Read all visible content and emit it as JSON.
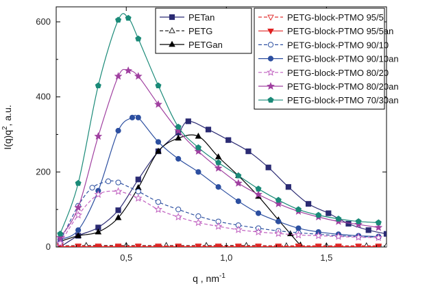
{
  "chart_data": {
    "type": "line",
    "xlabel": "q , nm",
    "xlabel_sup": "-1",
    "ylabel_pre": "I(q)q",
    "ylabel_sup": "2",
    "ylabel_post": ", a.u.",
    "xlim": [
      0.15,
      1.8
    ],
    "ylim": [
      0,
      640
    ],
    "xticks": [
      0.5,
      1.0,
      1.5
    ],
    "xtick_labels": [
      "0,5",
      "1,0",
      "1,5"
    ],
    "yticks": [
      0,
      200,
      400,
      600
    ],
    "ytick_labels": [
      "0",
      "200",
      "400",
      "600"
    ],
    "grid": false,
    "legend_placement": [
      "top-center",
      "top-right"
    ],
    "series": [
      {
        "name": "PETan",
        "color": "#2b2b73",
        "marker": "square",
        "filled": true,
        "dash": false,
        "legend": 0,
        "x": [
          0.17,
          0.26,
          0.36,
          0.46,
          0.56,
          0.66,
          0.76,
          0.81,
          0.91,
          1.01,
          1.11,
          1.21,
          1.31,
          1.41,
          1.51,
          1.61,
          1.71,
          1.8
        ],
        "y": [
          0,
          30,
          52,
          98,
          180,
          255,
          305,
          335,
          313,
          285,
          255,
          212,
          160,
          115,
          90,
          62,
          45,
          35
        ]
      },
      {
        "name": "PETG",
        "color": "#222222",
        "marker": "triangle-up",
        "filled": false,
        "dash": true,
        "legend": 0,
        "x": [
          0.17,
          0.3,
          0.5,
          0.7,
          0.9,
          1.1,
          1.3,
          1.5,
          1.7,
          1.8
        ],
        "y": [
          3,
          4,
          4,
          4,
          4,
          4,
          3,
          3,
          3,
          3
        ]
      },
      {
        "name": "PETGan",
        "color": "#000000",
        "marker": "triangle-up",
        "filled": true,
        "dash": false,
        "legend": 0,
        "x": [
          0.17,
          0.26,
          0.36,
          0.46,
          0.56,
          0.66,
          0.76,
          0.86,
          0.96,
          1.06,
          1.16,
          1.26,
          1.32,
          1.37,
          1.42
        ],
        "y": [
          15,
          30,
          40,
          78,
          158,
          255,
          290,
          295,
          240,
          190,
          135,
          72,
          35,
          5,
          -15
        ]
      },
      {
        "name": "PETG-block-PTMO 95/5",
        "color": "#e03030",
        "marker": "triangle-down",
        "filled": false,
        "dash": true,
        "legend": 1,
        "x": [
          0.17,
          0.26,
          0.36,
          0.46,
          0.56,
          0.66,
          0.76,
          0.86,
          0.96,
          1.06,
          1.16,
          1.26,
          1.36,
          1.46,
          1.56,
          1.66,
          1.76
        ],
        "y": [
          2,
          3,
          3,
          3,
          3,
          3,
          3,
          3,
          3,
          3,
          3,
          3,
          3,
          3,
          3,
          3,
          3
        ]
      },
      {
        "name": "PETG-block-PTMO 95/5an",
        "color": "#e02020",
        "marker": "triangle-down",
        "filled": true,
        "dash": false,
        "legend": 1,
        "x": [
          0.17,
          0.26,
          0.36,
          0.46,
          0.56,
          0.66,
          0.76,
          0.86,
          0.96,
          1.06,
          1.16,
          1.26,
          1.36,
          1.46,
          1.56,
          1.66,
          1.76
        ],
        "y": [
          1,
          1,
          1,
          1,
          1,
          1,
          1,
          1,
          1,
          1,
          1,
          1,
          1,
          1,
          1,
          1,
          1
        ]
      },
      {
        "name": "PETG-block-PTMO 90/10",
        "color": "#2c4fa0",
        "marker": "circle",
        "filled": false,
        "dash": true,
        "legend": 1,
        "x": [
          0.17,
          0.26,
          0.33,
          0.41,
          0.46,
          0.56,
          0.66,
          0.76,
          0.86,
          0.96,
          1.06,
          1.16,
          1.26,
          1.36,
          1.46,
          1.56,
          1.66,
          1.76
        ],
        "y": [
          15,
          110,
          158,
          175,
          172,
          148,
          120,
          100,
          82,
          68,
          58,
          50,
          43,
          38,
          34,
          30,
          28,
          26
        ]
      },
      {
        "name": "PETG-block-PTMO 90/10an",
        "color": "#2c4fa0",
        "marker": "circle",
        "filled": true,
        "dash": false,
        "legend": 1,
        "x": [
          0.17,
          0.26,
          0.36,
          0.46,
          0.53,
          0.56,
          0.66,
          0.76,
          0.86,
          0.96,
          1.06,
          1.16,
          1.26,
          1.36,
          1.46,
          1.56,
          1.66,
          1.76
        ],
        "y": [
          20,
          45,
          150,
          310,
          345,
          345,
          280,
          235,
          200,
          160,
          122,
          90,
          68,
          50,
          40,
          34,
          30,
          28
        ]
      },
      {
        "name": "PETG-block-PTMO 80/20",
        "color": "#c060c0",
        "marker": "star",
        "filled": false,
        "dash": true,
        "legend": 1,
        "x": [
          0.17,
          0.26,
          0.36,
          0.46,
          0.56,
          0.66,
          0.76,
          0.86,
          0.96,
          1.06,
          1.16,
          1.26,
          1.36,
          1.46,
          1.56,
          1.66,
          1.76
        ],
        "y": [
          10,
          85,
          140,
          148,
          130,
          100,
          80,
          65,
          55,
          46,
          40,
          36,
          32,
          30,
          28,
          26,
          25
        ]
      },
      {
        "name": "PETG-block-PTMO 80/20an",
        "color": "#a040a0",
        "marker": "star",
        "filled": true,
        "dash": false,
        "legend": 1,
        "x": [
          0.17,
          0.26,
          0.36,
          0.46,
          0.51,
          0.56,
          0.66,
          0.76,
          0.86,
          0.96,
          1.06,
          1.16,
          1.26,
          1.36,
          1.46,
          1.56,
          1.66,
          1.76
        ],
        "y": [
          25,
          105,
          295,
          455,
          470,
          455,
          380,
          310,
          255,
          210,
          170,
          140,
          115,
          95,
          80,
          68,
          60,
          52
        ]
      },
      {
        "name": "PETG-block-PTMO 70/30an",
        "color": "#1a8a78",
        "marker": "pentagon",
        "filled": true,
        "dash": false,
        "legend": 1,
        "x": [
          0.17,
          0.26,
          0.36,
          0.46,
          0.51,
          0.56,
          0.66,
          0.76,
          0.86,
          0.96,
          1.06,
          1.16,
          1.26,
          1.36,
          1.46,
          1.56,
          1.66,
          1.76
        ],
        "y": [
          35,
          170,
          430,
          605,
          610,
          555,
          430,
          320,
          265,
          225,
          190,
          155,
          125,
          100,
          85,
          75,
          68,
          65
        ]
      }
    ]
  }
}
